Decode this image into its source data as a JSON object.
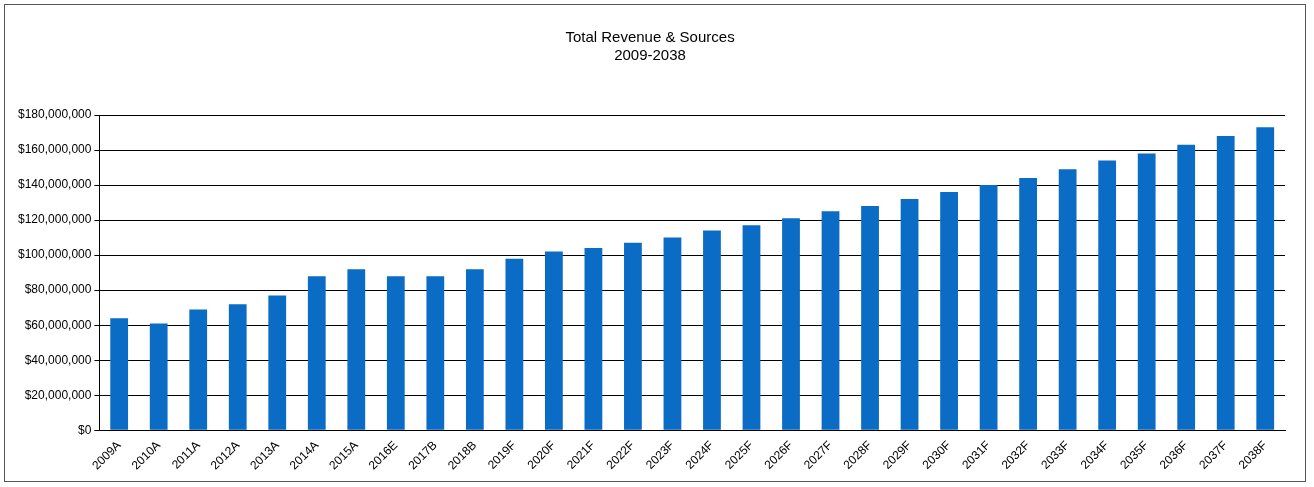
{
  "chart_data": {
    "type": "bar",
    "title": [
      "Total Revenue & Sources",
      "2009-2038"
    ],
    "categories": [
      "2009A",
      "2010A",
      "2011A",
      "2012A",
      "2013A",
      "2014A",
      "2015A",
      "2016E",
      "2017B",
      "2018B",
      "2019F",
      "2020F",
      "2021F",
      "2022F",
      "2023F",
      "2024F",
      "2025F",
      "2026F",
      "2027F",
      "2028F",
      "2029F",
      "2030F",
      "2031F",
      "2032F",
      "2033F",
      "2034F",
      "2035F",
      "2036F",
      "2037F",
      "2038F"
    ],
    "values": [
      64000000,
      61000000,
      69000000,
      72000000,
      77000000,
      88000000,
      92000000,
      88000000,
      88000000,
      92000000,
      98000000,
      102000000,
      104000000,
      107000000,
      110000000,
      114000000,
      117000000,
      121000000,
      125000000,
      128000000,
      132000000,
      136000000,
      140000000,
      144000000,
      149000000,
      154000000,
      158000000,
      163000000,
      168000000,
      173000000
    ],
    "color": "#0a6cc4",
    "ylim": [
      0,
      180000000
    ],
    "yticks": [
      {
        "value": 0,
        "label": "$0"
      },
      {
        "value": 20000000,
        "label": "$20,000,000"
      },
      {
        "value": 40000000,
        "label": "$40,000,000"
      },
      {
        "value": 60000000,
        "label": "$60,000,000"
      },
      {
        "value": 80000000,
        "label": "$80,000,000"
      },
      {
        "value": 100000000,
        "label": "$100,000,000"
      },
      {
        "value": 120000000,
        "label": "$120,000,000"
      },
      {
        "value": 140000000,
        "label": "$140,000,000"
      },
      {
        "value": 160000000,
        "label": "$160,000,000"
      },
      {
        "value": 180000000,
        "label": "$180,000,000"
      }
    ],
    "grid": "y"
  }
}
